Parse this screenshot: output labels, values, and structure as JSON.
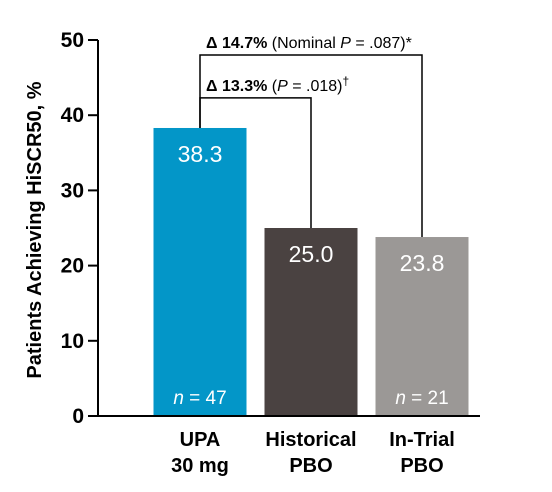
{
  "chart_data": {
    "type": "bar",
    "categories": [
      [
        "UPA",
        "30 mg"
      ],
      [
        "Historical",
        "PBO"
      ],
      [
        "In-Trial",
        "PBO"
      ]
    ],
    "values": [
      38.3,
      25.0,
      23.8
    ],
    "value_labels": [
      "38.3",
      "25.0",
      "23.8"
    ],
    "n_labels": [
      {
        "prefix": "n",
        "suffix": " = 47"
      },
      null,
      {
        "prefix": "n",
        "suffix": " = 21"
      }
    ],
    "bar_colors": [
      "#0396c8",
      "#4a4241",
      "#9b9896"
    ],
    "ylabel": "Patients Achieving HiSCR50, %",
    "ylim": [
      0,
      50
    ],
    "yticks": [
      0,
      10,
      20,
      30,
      40,
      50
    ],
    "grid": false,
    "annotations": [
      {
        "from": 0,
        "to": 2,
        "level": 48,
        "delta": "Δ 14.7%",
        "text_before": " (Nominal ",
        "p_symbol": "P",
        "text_after": " = .087)*",
        "superscript": ""
      },
      {
        "from": 0,
        "to": 1,
        "level": 42.3,
        "delta": "Δ 13.3%",
        "text_before": " (",
        "p_symbol": "P",
        "text_after": " = .018)",
        "superscript": "†"
      }
    ]
  }
}
